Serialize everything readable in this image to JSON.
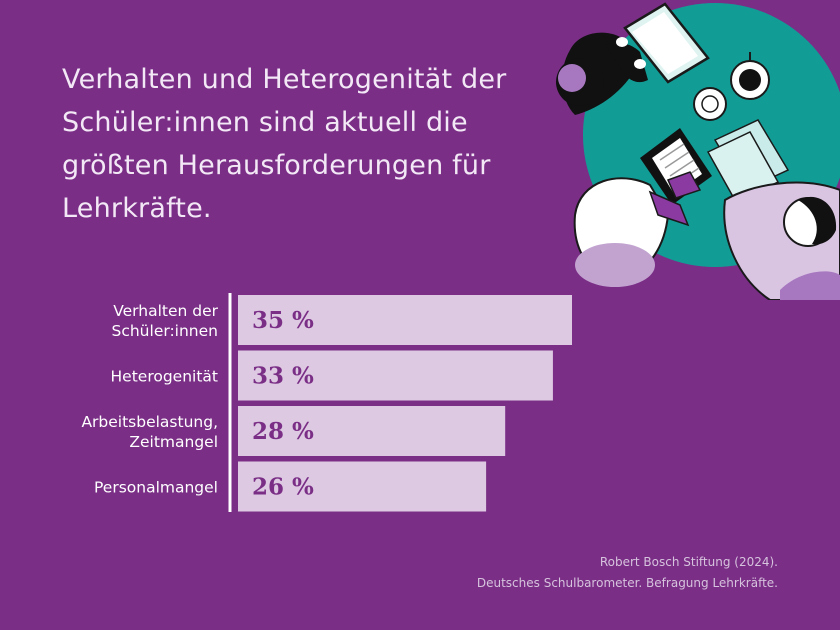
{
  "colors": {
    "background": "#7a2e86",
    "bar": "#ddc9e2",
    "value_text": "#7a2e86",
    "axis": "#ffffff",
    "table": "#119d96"
  },
  "chart_data": {
    "type": "bar",
    "orientation": "horizontal",
    "title": "Verhalten und Heterogenität der Schüler:innen sind aktuell die größten Herausforderungen für Lehrkräfte.",
    "categories": [
      [
        "Verhalten der",
        "Schüler:innen"
      ],
      [
        "Heterogenität"
      ],
      [
        "Arbeitsbelastung,",
        "Zeitmangel"
      ],
      [
        "Personalmangel"
      ]
    ],
    "values": [
      35,
      33,
      28,
      26
    ],
    "value_labels": [
      "35 %",
      "33 %",
      "28 %",
      "26 %"
    ],
    "unit": "%",
    "xlim": [
      0,
      35
    ],
    "grid": false,
    "legend": "none"
  },
  "source": {
    "line1": "Robert Bosch Stiftung (2024).",
    "line2": "Deutsches Schulbarometer. Befragung Lehrkräfte."
  }
}
